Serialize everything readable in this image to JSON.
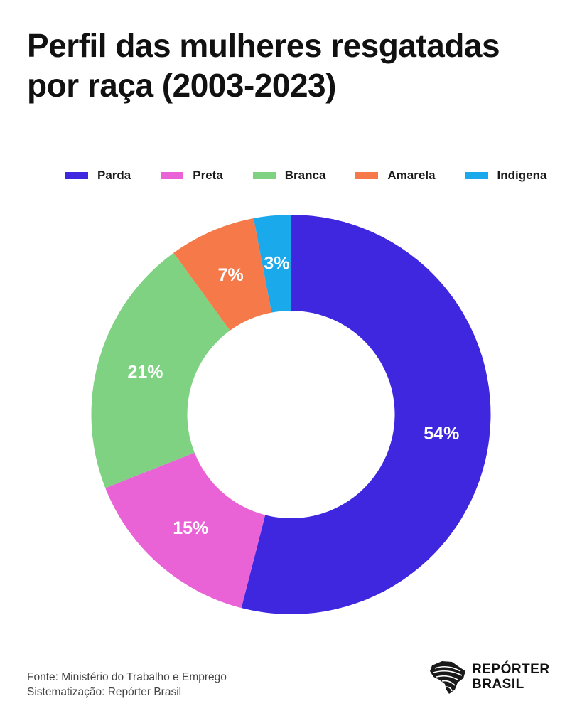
{
  "title": {
    "line1": "Perfil das mulheres resgatadas",
    "line2": "por raça (2003-2023)"
  },
  "chart_data": {
    "type": "pie",
    "donut": true,
    "categories": [
      "Parda",
      "Preta",
      "Branca",
      "Amarela",
      "Indígena"
    ],
    "values": [
      54,
      15,
      21,
      7,
      3
    ],
    "labels": [
      "54%",
      "15%",
      "21%",
      "7%",
      "3%"
    ],
    "colors": [
      "#3f27e0",
      "#e963d7",
      "#7ed282",
      "#f6794a",
      "#1aa9ea"
    ],
    "legend_placement": "top"
  },
  "footer": {
    "source": "Fonte: Ministério do Trabalho e Emprego",
    "systematization": "Sistematização: Repórter Brasil"
  },
  "logo": {
    "line1": "REPÓRTER",
    "line2": "BRASIL",
    "icon": "brazil-map-icon"
  }
}
